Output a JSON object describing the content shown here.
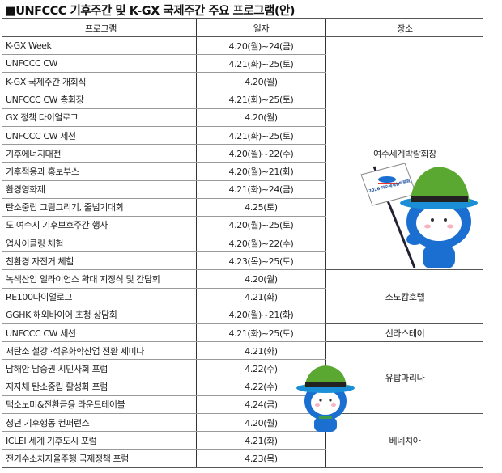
{
  "title": "■UNFCCC 기후주간 및 K-GX 국제주간 주요 프로그램(안)",
  "headers": {
    "program": "프로그램",
    "date": "일자",
    "venue": "장소"
  },
  "rows": [
    {
      "program": "K-GX Week",
      "date": "4.20(월)~24(금)"
    },
    {
      "program": "UNFCCC CW",
      "date": "4.21(화)~25(토)"
    },
    {
      "program": "K-GX 국제주간 개회식",
      "date": "4.20(월)"
    },
    {
      "program": "UNFCCC CW 총회장",
      "date": "4.21(화)~25(토)"
    },
    {
      "program": "GX 정책 다이얼로그",
      "date": "4.20(월)"
    },
    {
      "program": "UNFCCC CW 세션",
      "date": "4.21(화)~25(토)"
    },
    {
      "program": "기후에너지대전",
      "date": "4.20(월)~22(수)"
    },
    {
      "program": "기후적응과 홍보부스",
      "date": "4.20(월)~21(화)"
    },
    {
      "program": "환경영화제",
      "date": "4.21(화)~24(금)"
    },
    {
      "program": "탄소중립 그림그리기, 줄넘기대회",
      "date": "4.25(토)"
    },
    {
      "program": "도·여수시 기후보호주간 행사",
      "date": "4.20(월)~25(토)"
    },
    {
      "program": "업사이클링 체험",
      "date": "4.20(월)~22(수)"
    },
    {
      "program": "친환경 자전거 체험",
      "date": "4.23(목)~25(토)"
    },
    {
      "program": "녹색산업 얼라이언스 확대 지정식 및 간담회",
      "date": "4.20(월)"
    },
    {
      "program": "RE100다이얼로그",
      "date": "4.21(화)"
    },
    {
      "program": "GGHK 해외바이어 초청 상담회",
      "date": "4.20(월)~21(화)"
    },
    {
      "program": "UNFCCC CW 세션",
      "date": "4.21(화)~25(토)"
    },
    {
      "program": "저탄소 철강 ·석유화학산업 전환 세미나",
      "date": "4.21(화)"
    },
    {
      "program": "남해안 남중권 시민사회 포럼",
      "date": "4.22(수)"
    },
    {
      "program": "지자체 탄소중립 활성화 포럼",
      "date": "4.22(수)"
    },
    {
      "program": "택소노미&전환금융 라운드테이블",
      "date": "4.24(금)"
    },
    {
      "program": "청년 기후행동 컨퍼런스",
      "date": "4.20(월)"
    },
    {
      "program": "ICLEI 세계 기후도시 포럼",
      "date": "4.21(화)"
    },
    {
      "program": "전기수소차자율주행 국제정책 포럼",
      "date": "4.23(목)"
    }
  ],
  "venues": [
    {
      "name": "여수세계박람회장",
      "span": 13
    },
    {
      "name": "소노캄호텔",
      "span": 3
    },
    {
      "name": "신라스테이",
      "span": 1
    },
    {
      "name": "유탑마리나",
      "span": 4
    },
    {
      "name": "베네치아",
      "span": 3
    }
  ],
  "mascot_flag_text": "2026 여수세계섬박람회",
  "colors": {
    "mascot_blue": "#1a6fd0",
    "mascot_hat_green": "#5aa832",
    "hat_band": "#222222"
  }
}
